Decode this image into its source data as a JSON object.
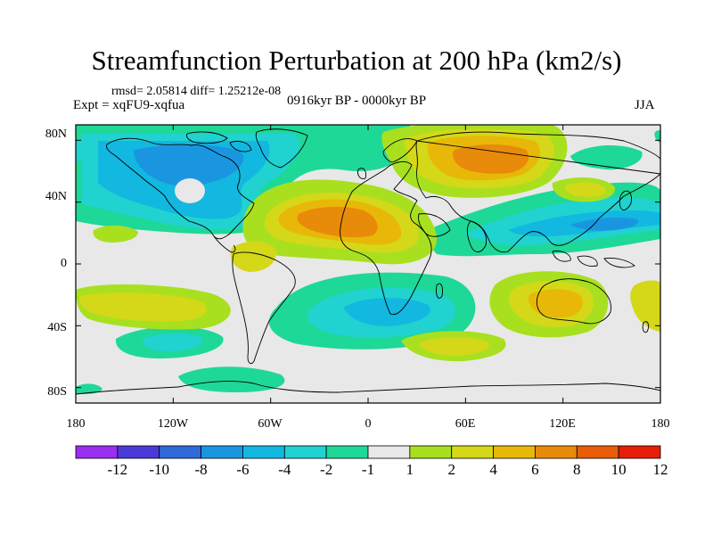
{
  "title": "Streamfunction Perturbation at 200 hPa (km2/s)",
  "rmsd_line": "rmsd= 2.05814 diff= 1.25212e-08",
  "expt_line": "Expt = xqFU9-xqfua",
  "period_line": "0916kyr BP - 0000kyr BP",
  "season": "JJA",
  "map": {
    "projection": "cylindrical-equidistant",
    "lon_range": [
      -180,
      180
    ],
    "lat_range": [
      -90,
      90
    ],
    "lat_ticks": [
      {
        "value": 80,
        "label": "80N"
      },
      {
        "value": 40,
        "label": "40N"
      },
      {
        "value": 0,
        "label": "0"
      },
      {
        "value": -40,
        "label": "40S"
      },
      {
        "value": -80,
        "label": "80S"
      }
    ],
    "lon_ticks": [
      {
        "value": -180,
        "label": "180"
      },
      {
        "value": -120,
        "label": "120W"
      },
      {
        "value": -60,
        "label": "60W"
      },
      {
        "value": 0,
        "label": "0"
      },
      {
        "value": 60,
        "label": "60E"
      },
      {
        "value": 120,
        "label": "120E"
      },
      {
        "value": 180,
        "label": "180"
      }
    ]
  },
  "colorbar": {
    "levels": [
      "-12",
      "-10",
      "-8",
      "-6",
      "-4",
      "-2",
      "-1",
      "1",
      "2",
      "4",
      "6",
      "8",
      "10",
      "12"
    ],
    "colors": [
      "#9b2ef0",
      "#4a3ad8",
      "#2e6ad8",
      "#1a96e0",
      "#12b8e0",
      "#20d2d0",
      "#1ed898",
      "#e8e8e8",
      "#a8e020",
      "#d4d818",
      "#e8b808",
      "#e88a0a",
      "#e85c0a",
      "#e61e0a"
    ]
  }
}
